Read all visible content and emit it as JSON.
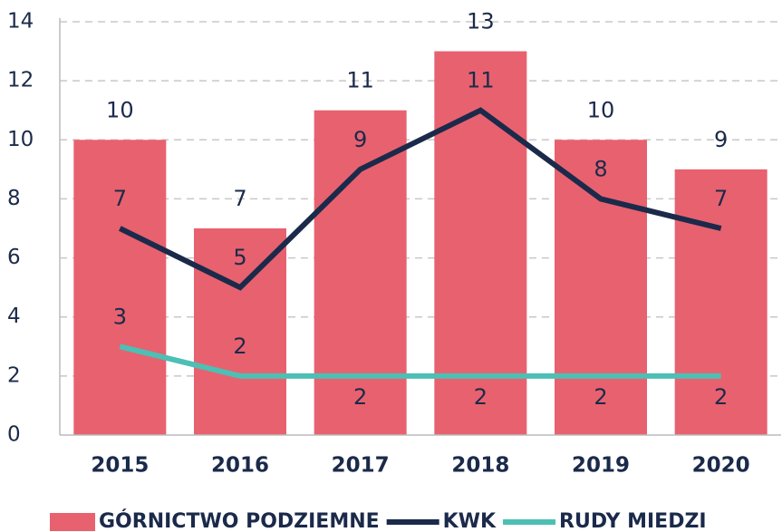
{
  "chart_data": {
    "type": "bar",
    "categories": [
      "2015",
      "2016",
      "2017",
      "2018",
      "2019",
      "2020"
    ],
    "series": [
      {
        "name": "GÓRNICTWO PODZIEMNE",
        "type": "bar",
        "color": "#e8616f",
        "label_color": "#4dbfb4",
        "values": [
          10,
          7,
          11,
          13,
          10,
          9
        ]
      },
      {
        "name": "KWK",
        "type": "line",
        "color": "#1b2a4a",
        "label_color": "#1b2a4a",
        "values": [
          7,
          5,
          9,
          11,
          8,
          7
        ]
      },
      {
        "name": "RUDY MIEDZI",
        "type": "line",
        "color": "#4dbfb4",
        "label_color": "#ffffff",
        "values": [
          3,
          2,
          2,
          2,
          2,
          2
        ]
      }
    ],
    "ylim": [
      0,
      14
    ],
    "yticks": [
      0,
      2,
      4,
      6,
      8,
      10,
      12,
      14
    ],
    "grid": true,
    "legend": "bottom"
  }
}
